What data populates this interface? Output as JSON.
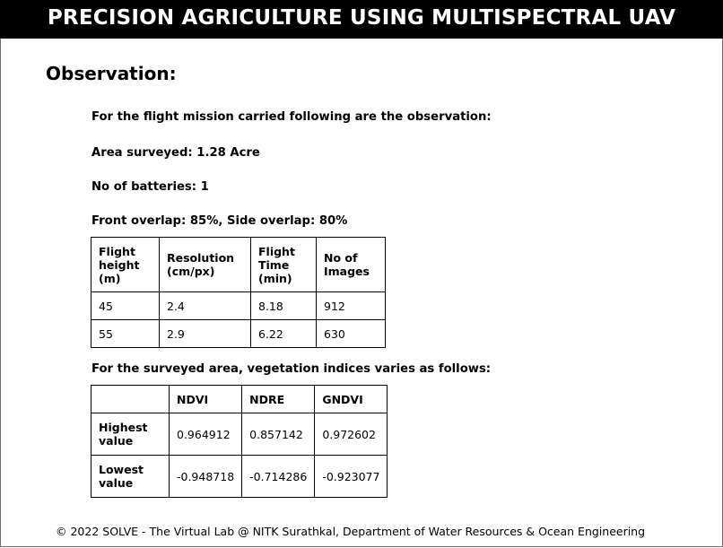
{
  "header": {
    "title": "PRECISION AGRICULTURE USING MULTISPECTRAL UAV"
  },
  "section": {
    "title": "Observation:"
  },
  "text": {
    "intro": "For the flight mission carried following are the observation:",
    "area": "Area surveyed: 1.28 Acre",
    "batteries": "No of batteries: 1",
    "overlap": "Front overlap: 85%, Side overlap: 80%",
    "indices_intro": "For the surveyed area, vegetation indices varies as follows:"
  },
  "flight_table": {
    "headers": [
      [
        "Flight",
        "height",
        "(m)"
      ],
      [
        "Resolution",
        "(cm/px)"
      ],
      [
        "Flight",
        "Time",
        "(min)"
      ],
      [
        "No of",
        "Images"
      ]
    ],
    "rows": [
      [
        "45",
        "2.4",
        "8.18",
        "912"
      ],
      [
        "55",
        "2.9",
        "6.22",
        "630"
      ]
    ]
  },
  "indices_table": {
    "headers": [
      "",
      "NDVI",
      "NDRE",
      "GNDVI"
    ],
    "rows": [
      {
        "label": [
          "Highest",
          "value"
        ],
        "values": [
          "0.964912",
          "0.857142",
          "0.972602"
        ]
      },
      {
        "label": [
          "Lowest",
          "value"
        ],
        "values": [
          "-0.948718",
          "-0.714286",
          "-0.923077"
        ]
      }
    ]
  },
  "footer": {
    "text": "© 2022 SOLVE - The Virtual Lab @ NITK Surathkal, Department of Water Resources & Ocean Engineering"
  }
}
